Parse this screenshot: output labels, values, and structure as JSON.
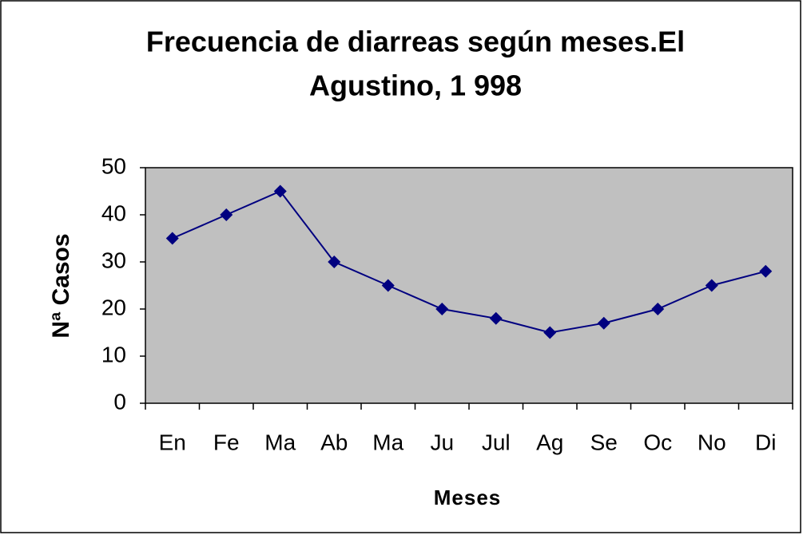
{
  "chart_data": {
    "type": "line",
    "title": [
      "Frecuencia de diarreas según meses.El",
      "Agustino, 1 998"
    ],
    "x_label": "Meses",
    "y_label": "Nª Casos",
    "categories": [
      "En",
      "Fe",
      "Ma",
      "Ab",
      "Ma",
      "Ju",
      "Jul",
      "Ag",
      "Se",
      "Oc",
      "No",
      "Di"
    ],
    "values": [
      35,
      40,
      45,
      30,
      25,
      20,
      18,
      15,
      17,
      20,
      25,
      28
    ],
    "color": "#000080",
    "plot_background": "#c0c0c0",
    "ylim": [
      0,
      50
    ],
    "yticks": [
      0,
      10,
      20,
      30,
      40,
      50
    ],
    "grid": false
  }
}
